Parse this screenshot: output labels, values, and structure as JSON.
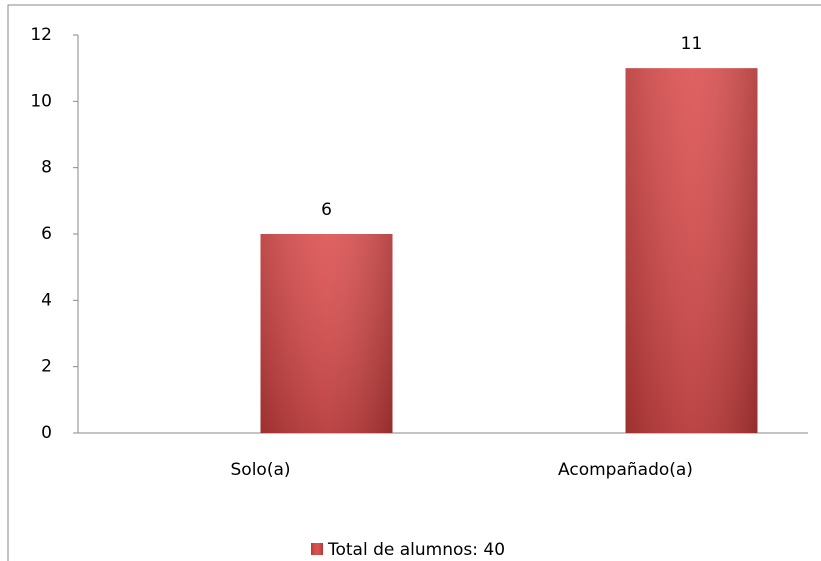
{
  "chart_data": {
    "type": "bar",
    "categories": [
      "Solo(a)",
      "Acompañado(a)"
    ],
    "series": [
      {
        "name": "Total de alumnos: 40",
        "color": "#d94141",
        "values": [
          6,
          11
        ]
      }
    ],
    "ylim": [
      0,
      12
    ],
    "yticks": [
      0,
      2,
      4,
      6,
      8,
      10,
      12
    ],
    "grid": false,
    "legend": "bottom"
  }
}
